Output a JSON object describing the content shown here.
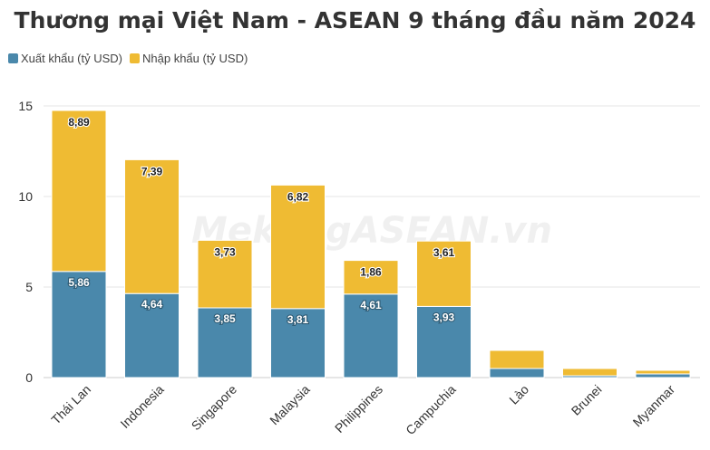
{
  "title": "Thương mại Việt Nam - ASEAN 9 tháng đầu năm 2024",
  "watermark": "MekongASEAN.vn",
  "colors": {
    "export": "#4a88ab",
    "import": "#efbb33",
    "grid": "#e6e6e6",
    "axis_text": "#333333"
  },
  "legend": [
    {
      "label": "Xuất khẩu (tỷ USD)",
      "color": "#4a88ab"
    },
    {
      "label": "Nhập khẩu (tỷ USD)",
      "color": "#efbb33"
    }
  ],
  "chart_data": {
    "type": "bar",
    "stacked": true,
    "title": "Thương mại Việt Nam - ASEAN 9 tháng đầu năm 2024",
    "categories": [
      "Thái Lan",
      "Indonesia",
      "Singapore",
      "Malaysia",
      "Philippines",
      "Campuchia",
      "Lào",
      "Brunei",
      "Myanmar"
    ],
    "series": [
      {
        "name": "Xuất khẩu (tỷ USD)",
        "values": [
          5.86,
          4.64,
          3.85,
          3.81,
          4.61,
          3.93,
          0.5,
          0.1,
          0.2
        ],
        "labels": [
          "5,86",
          "4,64",
          "3,85",
          "3,81",
          "4,61",
          "3,93",
          "",
          "",
          ""
        ]
      },
      {
        "name": "Nhập khẩu (tỷ USD)",
        "values": [
          8.89,
          7.39,
          3.73,
          6.82,
          1.86,
          3.61,
          1.0,
          0.4,
          0.2
        ],
        "labels": [
          "8,89",
          "7,39",
          "3,73",
          "6,82",
          "1,86",
          "3,61",
          "",
          "",
          ""
        ]
      }
    ],
    "yticks": [
      0,
      5,
      10,
      15
    ],
    "ylim": [
      0,
      15.5
    ],
    "grid": true,
    "legend_position": "top-left"
  }
}
